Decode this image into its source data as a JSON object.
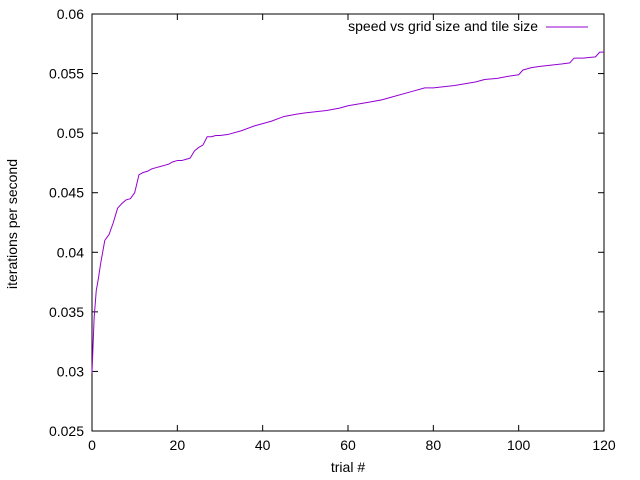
{
  "colors": {
    "series": "#9400d3",
    "axis": "#000000",
    "background": "#ffffff"
  },
  "chart_data": {
    "type": "line",
    "title": "",
    "xlabel": "trial #",
    "ylabel": "iterations per second",
    "xlim": [
      0,
      120
    ],
    "ylim": [
      0.025,
      0.06
    ],
    "xticks": [
      0,
      20,
      40,
      60,
      80,
      100,
      120
    ],
    "yticks": [
      0.025,
      0.03,
      0.035,
      0.04,
      0.045,
      0.05,
      0.055,
      0.06
    ],
    "xtick_labels": [
      "0",
      "20",
      "40",
      "60",
      "80",
      "100",
      "120"
    ],
    "ytick_labels": [
      "0.025",
      "0.03",
      "0.035",
      "0.04",
      "0.045",
      "0.05",
      "0.055",
      "0.06"
    ],
    "grid": false,
    "legend": {
      "position": "top-right"
    },
    "series": [
      {
        "name": "speed vs grid size and tile size",
        "x": [
          0,
          0.5,
          1,
          1.5,
          2,
          3,
          4,
          5,
          6,
          7,
          8,
          9,
          10,
          11,
          12,
          13,
          14,
          15,
          16,
          17,
          18,
          19,
          20,
          21,
          22,
          23,
          24,
          25,
          26,
          27,
          28,
          29,
          30,
          32,
          35,
          38,
          40,
          42,
          45,
          48,
          50,
          55,
          58,
          60,
          65,
          68,
          70,
          75,
          78,
          80,
          85,
          90,
          92,
          95,
          98,
          100,
          101,
          103,
          105,
          110,
          112,
          113,
          115,
          118,
          119,
          120
        ],
        "y": [
          0.0299,
          0.0345,
          0.0368,
          0.0378,
          0.039,
          0.041,
          0.0415,
          0.0425,
          0.0437,
          0.0441,
          0.0444,
          0.0445,
          0.045,
          0.0465,
          0.0467,
          0.0468,
          0.047,
          0.0471,
          0.0472,
          0.0473,
          0.0474,
          0.0476,
          0.0477,
          0.0477,
          0.0478,
          0.0479,
          0.0485,
          0.0488,
          0.049,
          0.0497,
          0.0497,
          0.0498,
          0.0498,
          0.0499,
          0.0502,
          0.0506,
          0.0508,
          0.051,
          0.0514,
          0.0516,
          0.0517,
          0.0519,
          0.0521,
          0.0523,
          0.0526,
          0.0528,
          0.053,
          0.0535,
          0.0538,
          0.0538,
          0.054,
          0.0543,
          0.0545,
          0.0546,
          0.0548,
          0.0549,
          0.0553,
          0.0555,
          0.0556,
          0.0558,
          0.0559,
          0.0563,
          0.0563,
          0.0564,
          0.0568,
          0.0568
        ]
      }
    ]
  }
}
